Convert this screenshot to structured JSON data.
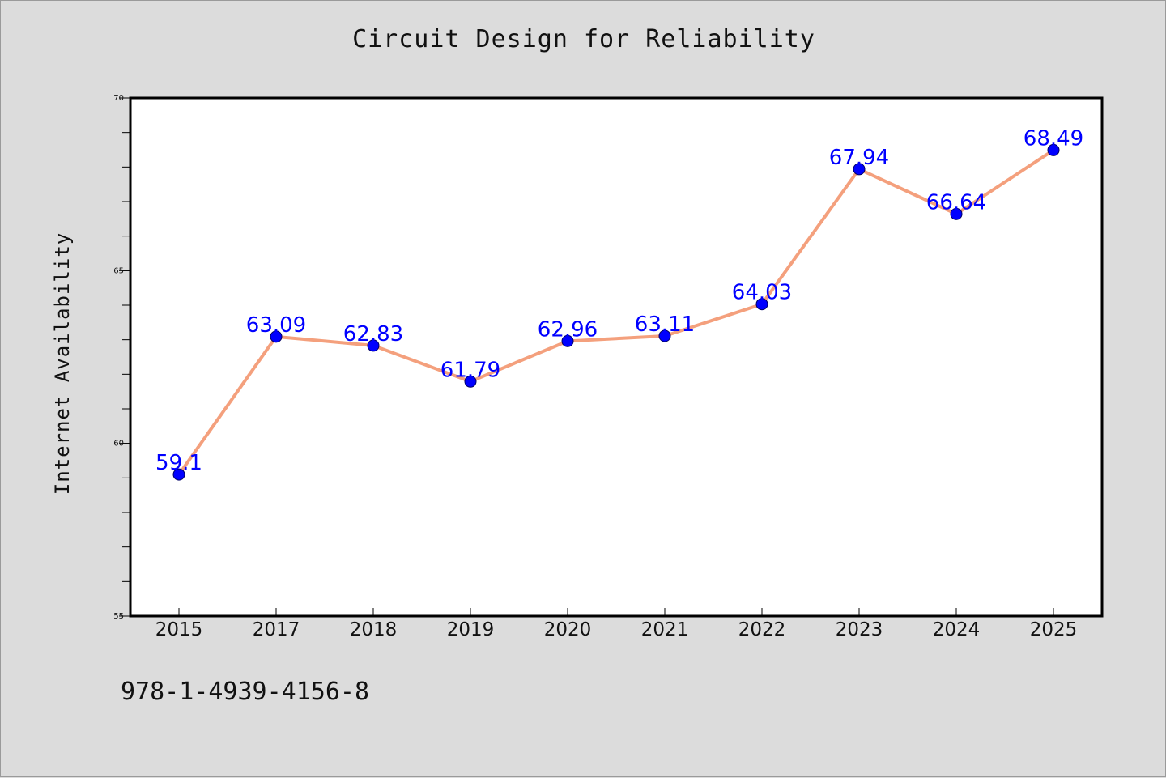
{
  "chart_data": {
    "type": "line",
    "title": "Circuit Design for Reliability",
    "xlabel": "",
    "ylabel": "Internet Availability",
    "categories": [
      "2015",
      "2017",
      "2018",
      "2019",
      "2020",
      "2021",
      "2022",
      "2023",
      "2024",
      "2025"
    ],
    "series": [
      {
        "values": [
          59.1,
          63.09,
          62.83,
          61.79,
          62.96,
          63.11,
          64.03,
          67.94,
          66.64,
          68.49
        ],
        "labels": [
          "59.1",
          "63.09",
          "62.83",
          "61.79",
          "62.96",
          "63.11",
          "64.03",
          "67.94",
          "66.64",
          "68.49"
        ]
      }
    ],
    "ylim": [
      55,
      70
    ],
    "y_ticks": [
      "55",
      "60",
      "65",
      "70"
    ],
    "y_minor_step": 1,
    "grid": false,
    "legend": "none",
    "colors": {
      "line": "#f4a07d",
      "marker": "#0000ff",
      "marker_edge": "#000066",
      "data_label": "#0000ff",
      "axis": "#000000",
      "plot_background": "#ffffff",
      "page_background": "#dcdcdc"
    }
  },
  "footer": {
    "isbn": "978-1-4939-4156-8"
  }
}
